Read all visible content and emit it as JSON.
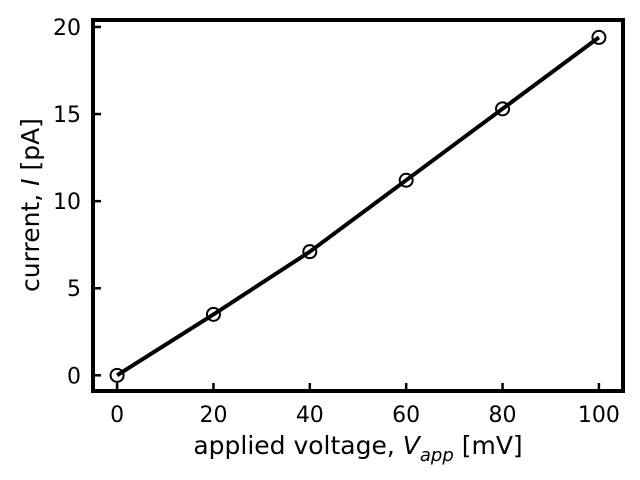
{
  "chart_data": {
    "type": "line",
    "x": [
      0,
      20,
      40,
      60,
      80,
      100
    ],
    "series": [
      {
        "values": [
          0.0,
          3.5,
          7.1,
          11.2,
          15.3,
          19.4
        ],
        "marker": "open-circle",
        "color": "#000000"
      }
    ],
    "xlabel": {
      "prefix": "applied voltage, ",
      "symbol": "V",
      "subscript": "app",
      "suffix": " [mV]"
    },
    "ylabel": {
      "prefix": "current, ",
      "symbol": "I",
      "suffix": " [pA]"
    },
    "xlim": [
      -5,
      105
    ],
    "ylim": [
      -0.9,
      20.4
    ],
    "xticks": [
      "0",
      "20",
      "40",
      "60",
      "80",
      "100"
    ],
    "yticks": [
      "0",
      "5",
      "10",
      "15",
      "20"
    ],
    "grid": false,
    "legend": "none",
    "tick_direction": "in"
  }
}
